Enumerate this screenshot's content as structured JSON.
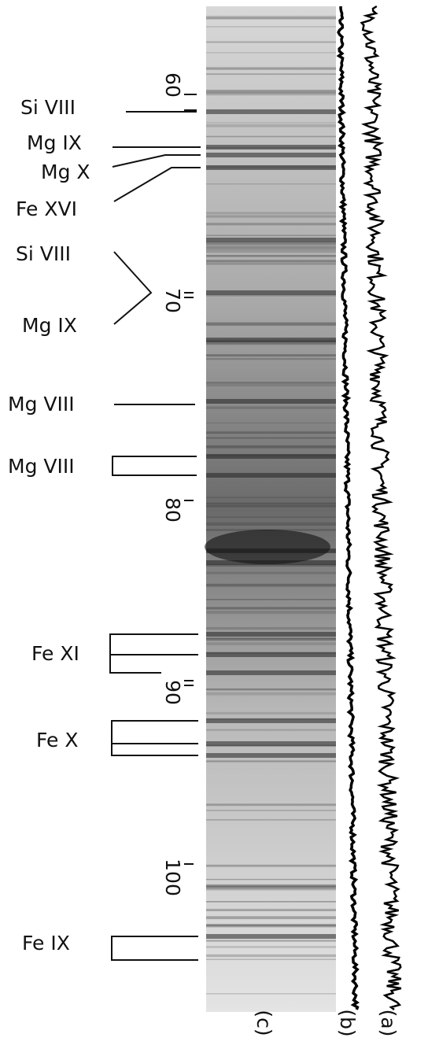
{
  "line_labels": [
    "Si VIII",
    "Mg IX",
    "Mg X",
    "Fe XVI",
    "Si VIII",
    "Mg IX",
    "Mg VIII",
    "Mg VIII",
    "Fe XI",
    "Fe X",
    "Fe IX"
  ],
  "wavelength_ticks": [
    "60",
    "70",
    "80",
    "90",
    "100"
  ],
  "trace_labels": [
    "(c)",
    "(b)",
    "(a)"
  ]
}
